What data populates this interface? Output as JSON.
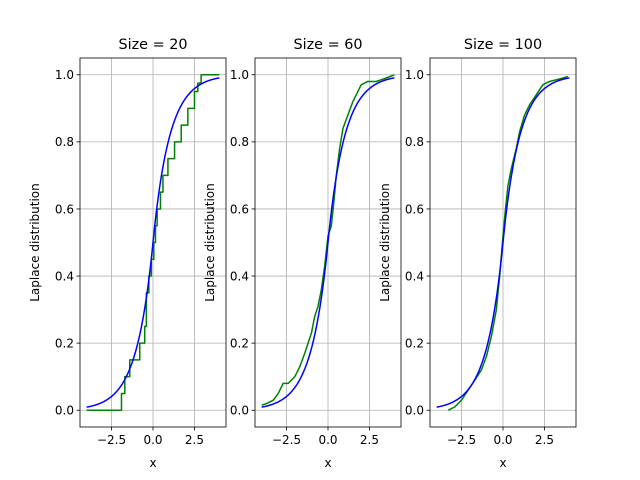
{
  "figure": {
    "background": "#ffffff"
  },
  "chart_data": [
    {
      "type": "line",
      "title": "Size = 20",
      "xlabel": "x",
      "ylabel": "Laplace distribution",
      "xlim": [
        -4.4,
        4.4
      ],
      "ylim": [
        -0.05,
        1.05
      ],
      "xticks": [
        -2.5,
        0.0,
        2.5
      ],
      "xtick_labels": [
        "−2.5",
        "0.0",
        "2.5"
      ],
      "yticks": [
        0.0,
        0.2,
        0.4,
        0.6,
        0.8,
        1.0
      ],
      "ytick_labels": [
        "0.0",
        "0.2",
        "0.4",
        "0.6",
        "0.8",
        "1.0"
      ],
      "grid": true,
      "series": [
        {
          "color": "#008000",
          "kind": "step",
          "x": [
            -4.0,
            -1.9,
            -1.7,
            -1.4,
            -0.8,
            -0.5,
            -0.4,
            -0.25,
            -0.1,
            0.05,
            0.15,
            0.25,
            0.45,
            0.6,
            0.9,
            1.3,
            1.7,
            2.1,
            2.5,
            2.7,
            2.9,
            4.0
          ],
          "y": [
            0.0,
            0.05,
            0.1,
            0.15,
            0.2,
            0.25,
            0.35,
            0.4,
            0.45,
            0.5,
            0.55,
            0.6,
            0.65,
            0.7,
            0.75,
            0.8,
            0.85,
            0.9,
            0.95,
            0.975,
            1.0,
            1.0
          ]
        },
        {
          "color": "#0000ff",
          "kind": "laplace_cdf",
          "x_range": [
            -4,
            4
          ]
        }
      ]
    },
    {
      "type": "line",
      "title": "Size = 60",
      "xlabel": "x",
      "ylabel": "Laplace distribution",
      "xlim": [
        -4.4,
        4.4
      ],
      "ylim": [
        -0.05,
        1.05
      ],
      "xticks": [
        -2.5,
        0.0,
        2.5
      ],
      "xtick_labels": [
        "−2.5",
        "0.0",
        "2.5"
      ],
      "yticks": [
        0.0,
        0.2,
        0.4,
        0.6,
        0.8,
        1.0
      ],
      "ytick_labels": [
        "0.0",
        "0.2",
        "0.4",
        "0.6",
        "0.8",
        "1.0"
      ],
      "grid": true,
      "series": [
        {
          "color": "#008000",
          "kind": "line",
          "x": [
            -4.0,
            -3.7,
            -3.3,
            -3.0,
            -2.7,
            -2.4,
            -2.0,
            -1.7,
            -1.4,
            -1.2,
            -1.0,
            -0.8,
            -0.6,
            -0.4,
            -0.2,
            0.0,
            0.2,
            0.35,
            0.5,
            0.7,
            0.9,
            1.2,
            1.5,
            1.8,
            2.0,
            2.4,
            2.9,
            3.2,
            3.5,
            4.0
          ],
          "y": [
            0.015,
            0.02,
            0.03,
            0.05,
            0.08,
            0.08,
            0.1,
            0.13,
            0.17,
            0.2,
            0.23,
            0.28,
            0.31,
            0.36,
            0.43,
            0.52,
            0.55,
            0.62,
            0.7,
            0.78,
            0.84,
            0.88,
            0.92,
            0.95,
            0.97,
            0.98,
            0.98,
            0.985,
            0.99,
            1.0
          ]
        },
        {
          "color": "#0000ff",
          "kind": "laplace_cdf",
          "x_range": [
            -4,
            4
          ]
        }
      ]
    },
    {
      "type": "line",
      "title": "Size = 100",
      "xlabel": "x",
      "ylabel": "Laplace distribution",
      "xlim": [
        -4.4,
        4.4
      ],
      "ylim": [
        -0.05,
        1.05
      ],
      "xticks": [
        -2.5,
        0.0,
        2.5
      ],
      "xtick_labels": [
        "−2.5",
        "0.0",
        "2.5"
      ],
      "yticks": [
        0.0,
        0.2,
        0.4,
        0.6,
        0.8,
        1.0
      ],
      "ytick_labels": [
        "0.0",
        "0.2",
        "0.4",
        "0.6",
        "0.8",
        "1.0"
      ],
      "grid": true,
      "series": [
        {
          "color": "#008000",
          "kind": "line",
          "x": [
            -3.3,
            -2.9,
            -2.5,
            -2.1,
            -1.7,
            -1.3,
            -1.0,
            -0.7,
            -0.4,
            -0.2,
            0.0,
            0.15,
            0.3,
            0.5,
            0.8,
            1.0,
            1.3,
            1.6,
            2.0,
            2.4,
            2.8,
            3.2,
            3.6,
            3.9
          ],
          "y": [
            0.0,
            0.01,
            0.03,
            0.06,
            0.09,
            0.12,
            0.16,
            0.22,
            0.3,
            0.4,
            0.52,
            0.6,
            0.67,
            0.72,
            0.78,
            0.83,
            0.88,
            0.91,
            0.94,
            0.97,
            0.98,
            0.985,
            0.99,
            0.995
          ]
        },
        {
          "color": "#0000ff",
          "kind": "laplace_cdf",
          "x_range": [
            -4,
            4
          ]
        }
      ]
    }
  ]
}
